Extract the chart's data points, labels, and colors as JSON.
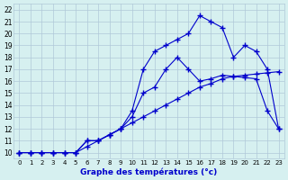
{
  "title": "",
  "xlabel": "Graphe des températures (°c)",
  "ylabel_ticks": [
    10,
    11,
    12,
    13,
    14,
    15,
    16,
    17,
    18,
    19,
    20,
    21,
    22
  ],
  "xlabel_ticks": [
    0,
    1,
    2,
    3,
    4,
    5,
    6,
    7,
    8,
    9,
    10,
    11,
    12,
    13,
    14,
    15,
    16,
    17,
    18,
    19,
    20,
    21,
    22,
    23
  ],
  "xlim": [
    -0.5,
    23.5
  ],
  "ylim": [
    9.5,
    22.5
  ],
  "background_color": "#d6f0f0",
  "grid_color": "#b0c8d8",
  "line_color": "#0000cc",
  "line1": {
    "x": [
      0,
      1,
      2,
      3,
      4,
      5,
      6,
      7,
      8,
      9,
      10,
      11,
      12,
      13,
      14,
      15,
      16,
      17,
      18,
      19,
      20,
      21,
      22,
      23
    ],
    "y": [
      10,
      10,
      10,
      10,
      10,
      10,
      10.5,
      11,
      11.5,
      12,
      12.5,
      13,
      13.5,
      14,
      14.5,
      15,
      15.5,
      15.8,
      16.2,
      16.4,
      16.5,
      16.6,
      16.7,
      16.8
    ]
  },
  "line2": {
    "x": [
      0,
      1,
      2,
      3,
      4,
      5,
      6,
      7,
      8,
      9,
      10,
      11,
      12,
      13,
      14,
      15,
      16,
      17,
      18,
      19,
      20,
      21,
      22,
      23
    ],
    "y": [
      10,
      10,
      10,
      10,
      10,
      10,
      11,
      11,
      11.5,
      12,
      13,
      15,
      15.5,
      17,
      18,
      17,
      16,
      16.2,
      16.5,
      16.4,
      16.3,
      16.2,
      13.5,
      12
    ]
  },
  "line3": {
    "x": [
      0,
      1,
      2,
      3,
      4,
      5,
      6,
      7,
      8,
      9,
      10,
      11,
      12,
      13,
      14,
      15,
      16,
      17,
      18,
      19,
      20,
      21,
      22,
      23
    ],
    "y": [
      10,
      10,
      10,
      10,
      10,
      10,
      11,
      11,
      11.5,
      12,
      13.5,
      17,
      18.5,
      19,
      19.5,
      20,
      21.5,
      21,
      20.5,
      18,
      19,
      18.5,
      17,
      12
    ]
  }
}
